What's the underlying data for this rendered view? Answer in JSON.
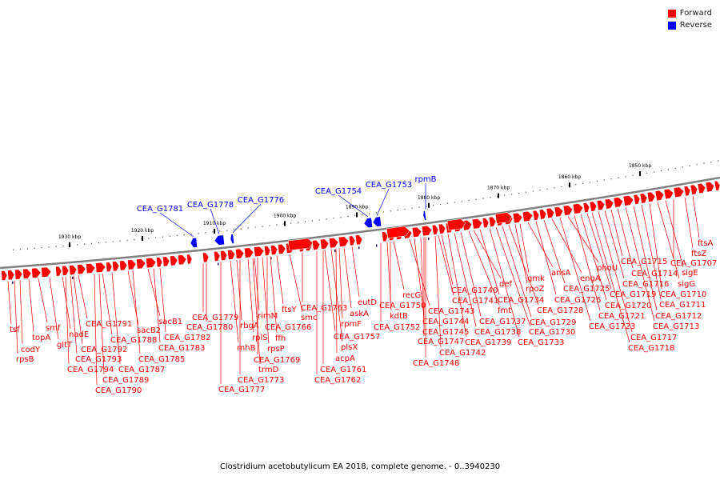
{
  "legend": {
    "forward_label": "Forward",
    "reverse_label": "Reverse",
    "forward_color": "#ff0000",
    "reverse_color": "#0000ff"
  },
  "caption": "Clostridium acetobutylicum EA 2018, complete genome. - 0..3940230",
  "ticks": [
    "1930 kbp",
    "1920 kbp",
    "1910 kbp",
    "1900 kbp",
    "1890 kbp",
    "1880 kbp",
    "1870 kbp",
    "1860 kbp",
    "1850 kbp"
  ],
  "reverse_genes": [
    "CEA_G1781",
    "CEA_G1778",
    "CEA_G1776",
    "CEA_G1754",
    "CEA_G1753",
    "rpmB"
  ],
  "forward_genes": [
    "tsf",
    "rpsB",
    "codY",
    "topA",
    "smf",
    "gltT",
    "nadE",
    "CEA_G1791",
    "CEA_G1792",
    "CEA_G1793",
    "CEA_G1794",
    "CEA_G1788",
    "CEA_G1787",
    "CEA_G1789",
    "CEA_G1790",
    "sacB2",
    "sacB1",
    "CEA_G1785",
    "CEA_G1783",
    "CEA_G1782",
    "CEA_G1779",
    "CEA_G1780",
    "rnhB",
    "CEA_G1777",
    "CEA_G1773",
    "rbgA",
    "rimM",
    "rplS",
    "trmD",
    "rpsP",
    "CEA_G1769",
    "ffh",
    "CEA_G1766",
    "ftsY",
    "smc",
    "CEA_G1763",
    "CEA_G1757",
    "plsX",
    "acpA",
    "CEA_G1761",
    "CEA_G1762",
    "rpmF",
    "askA",
    "eutD",
    "kdtB",
    "CEA_G1752",
    "recG",
    "CEA_G1750",
    "CEA_G1743",
    "CEA_G1744",
    "CEA_G1745",
    "CEA_G1747",
    "CEA_G1748",
    "CEA_G1742",
    "CEA_G1741",
    "CEA_G1740",
    "CEA_G1739",
    "CEA_G1738",
    "CEA_G1737",
    "fmt",
    "def",
    "CEA_G1734",
    "CEA_G1733",
    "CEA_G1730",
    "CEA_G1729",
    "CEA_G1728",
    "rpoZ",
    "gmk",
    "ansA",
    "CEA_G1726",
    "CEA_G1725",
    "engA",
    "CEA_G1723",
    "phoU",
    "CEA_G1721",
    "CEA_G1720",
    "CEA_G1719",
    "CEA_G1718",
    "CEA_G1717",
    "CEA_G1716",
    "CEA_G1715",
    "CEA_G1714",
    "CEA_G1713",
    "CEA_G1712",
    "CEA_G1711",
    "CEA_G1710",
    "sigG",
    "sigE",
    "CEA_G1707",
    "ftsZ",
    "ftsA"
  ]
}
